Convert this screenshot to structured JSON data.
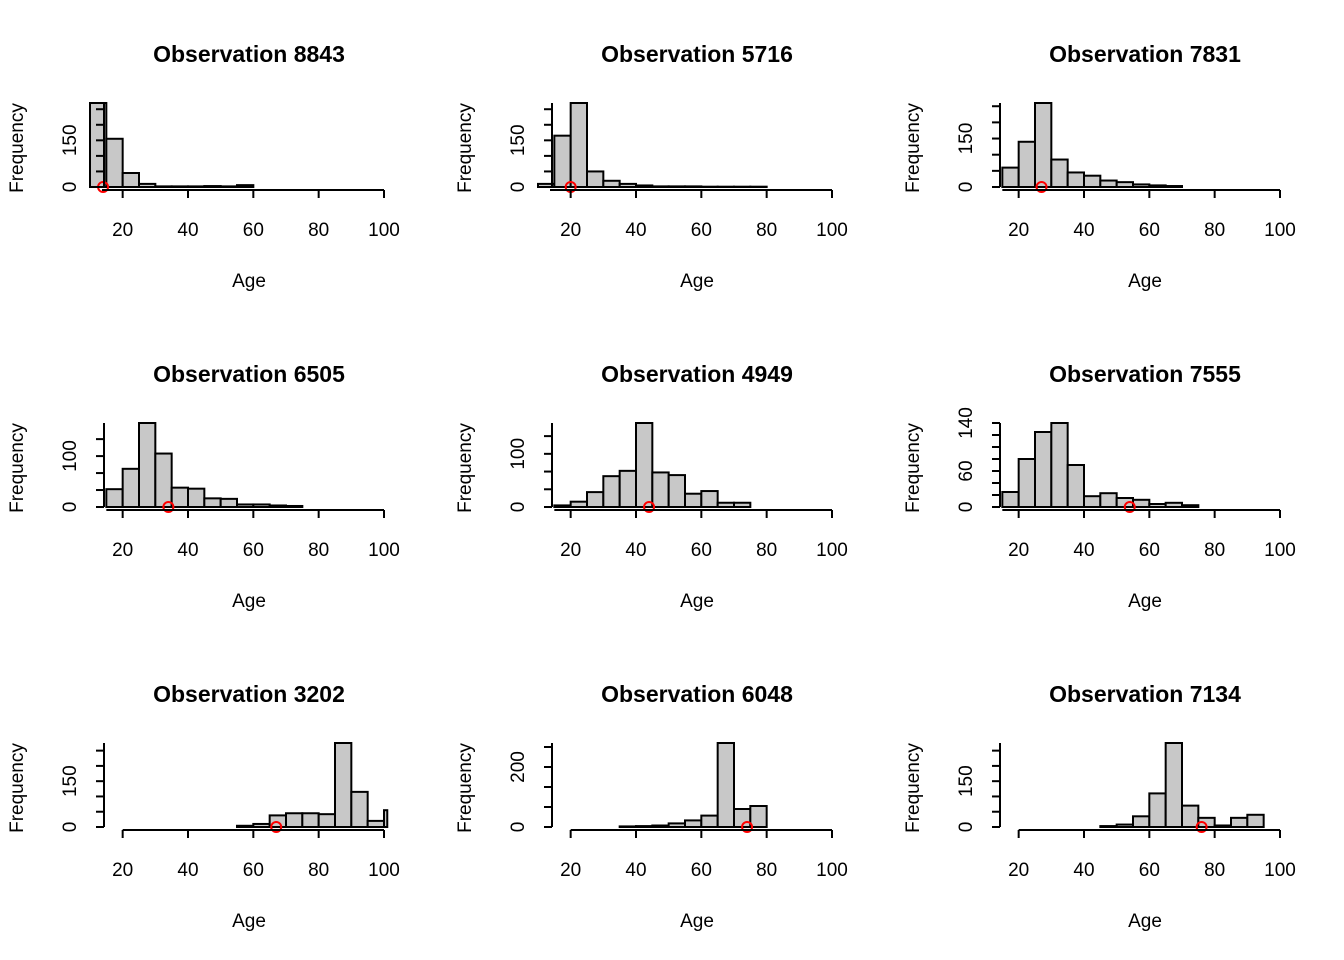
{
  "chart_data": [
    {
      "type": "bar",
      "title": "Observation 8843",
      "xlabel": "Age",
      "ylabel": "Frequency",
      "xlim": [
        10,
        100
      ],
      "xticks": [
        20,
        40,
        60,
        80,
        100
      ],
      "yticks": [
        0,
        150
      ],
      "ymax": 270,
      "bin_start": 10,
      "bin_width": 5,
      "values": [
        270,
        155,
        45,
        10,
        2,
        2,
        2,
        3,
        2,
        6
      ],
      "observed_age": 14
    },
    {
      "type": "bar",
      "title": "Observation 5716",
      "xlabel": "Age",
      "ylabel": "Frequency",
      "xlim": [
        10,
        100
      ],
      "xticks": [
        20,
        40,
        60,
        80,
        100
      ],
      "yticks": [
        0,
        150
      ],
      "ymax": 270,
      "bin_start": 10,
      "bin_width": 5,
      "values": [
        10,
        165,
        270,
        50,
        20,
        10,
        5,
        2,
        2,
        2,
        1,
        1,
        1,
        1
      ],
      "observed_age": 20
    },
    {
      "type": "bar",
      "title": "Observation 7831",
      "xlabel": "Age",
      "ylabel": "Frequency",
      "xlim": [
        10,
        100
      ],
      "xticks": [
        20,
        40,
        60,
        80,
        100
      ],
      "yticks": [
        0,
        150
      ],
      "ymax": 260,
      "bin_start": 15,
      "bin_width": 5,
      "values": [
        60,
        140,
        260,
        85,
        45,
        35,
        20,
        15,
        8,
        5,
        3
      ],
      "observed_age": 27
    },
    {
      "type": "bar",
      "title": "Observation 6505",
      "xlabel": "Age",
      "ylabel": "Frequency",
      "xlim": [
        10,
        100
      ],
      "xticks": [
        20,
        40,
        60,
        80,
        100
      ],
      "yticks": [
        0,
        100
      ],
      "ymax": 165,
      "bin_start": 15,
      "bin_width": 5,
      "values": [
        35,
        75,
        165,
        105,
        38,
        36,
        17,
        16,
        5,
        5,
        3,
        2
      ],
      "observed_age": 34
    },
    {
      "type": "bar",
      "title": "Observation 4949",
      "xlabel": "Age",
      "ylabel": "Frequency",
      "xlim": [
        10,
        100
      ],
      "xticks": [
        20,
        40,
        60,
        80,
        100
      ],
      "yticks": [
        0,
        100
      ],
      "ymax": 158,
      "bin_start": 15,
      "bin_width": 5,
      "values": [
        3,
        10,
        28,
        58,
        68,
        158,
        65,
        60,
        25,
        30,
        8,
        8
      ],
      "observed_age": 44
    },
    {
      "type": "bar",
      "title": "Observation 7555",
      "xlabel": "Age",
      "ylabel": "Frequency",
      "xlim": [
        10,
        100
      ],
      "xticks": [
        20,
        40,
        60,
        80,
        100
      ],
      "yticks": [
        0,
        60,
        140
      ],
      "ymax": 140,
      "bin_start": 15,
      "bin_width": 5,
      "values": [
        25,
        80,
        125,
        140,
        70,
        18,
        23,
        15,
        12,
        5,
        7,
        3
      ],
      "observed_age": 54
    },
    {
      "type": "bar",
      "title": "Observation 3202",
      "xlabel": "Age",
      "ylabel": "Frequency",
      "xlim": [
        10,
        100
      ],
      "xticks": [
        20,
        40,
        60,
        80,
        100
      ],
      "yticks": [
        0,
        150
      ],
      "ymax": 275,
      "bin_start": 55,
      "bin_width": 5,
      "values": [
        4,
        10,
        38,
        45,
        45,
        42,
        275,
        115,
        20,
        55
      ],
      "observed_age": 67
    },
    {
      "type": "bar",
      "title": "Observation 6048",
      "xlabel": "Age",
      "ylabel": "Frequency",
      "xlim": [
        10,
        100
      ],
      "xticks": [
        20,
        40,
        60,
        80,
        100
      ],
      "yticks": [
        0,
        200
      ],
      "ymax": 280,
      "bin_start": 35,
      "bin_width": 5,
      "values": [
        2,
        3,
        5,
        12,
        22,
        38,
        280,
        60,
        70
      ],
      "observed_age": 74
    },
    {
      "type": "bar",
      "title": "Observation 7134",
      "xlabel": "Age",
      "ylabel": "Frequency",
      "xlim": [
        10,
        100
      ],
      "xticks": [
        20,
        40,
        60,
        80,
        100
      ],
      "yticks": [
        0,
        150
      ],
      "ymax": 275,
      "bin_start": 45,
      "bin_width": 5,
      "values": [
        3,
        8,
        35,
        110,
        275,
        70,
        30,
        5,
        30,
        40
      ],
      "observed_age": 76
    }
  ],
  "colors": {
    "bar_fill": "#c8c8c8",
    "bar_stroke": "#000000",
    "marker": "#ff0000"
  }
}
